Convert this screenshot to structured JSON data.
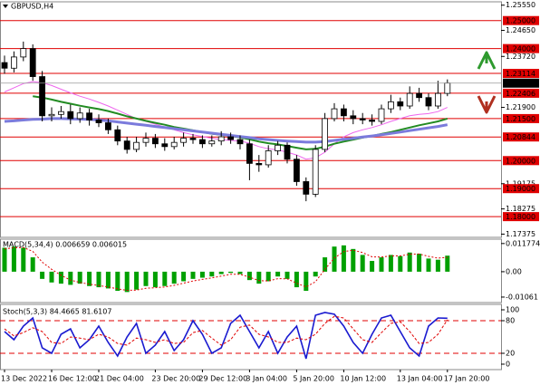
{
  "chart_data": [
    {
      "type": "candlestick",
      "title": "GBPUSD,H4",
      "open": [
        1.235,
        1.233,
        1.237,
        1.24,
        1.23,
        1.216,
        1.2165,
        1.2175,
        1.215,
        1.217,
        1.2145,
        1.2135,
        1.211,
        1.207,
        1.204,
        1.2065,
        1.208,
        1.206,
        1.205,
        1.2065,
        1.208,
        1.2075,
        1.206,
        1.207,
        1.2085,
        1.2075,
        1.206,
        1.199,
        1.1985,
        1.2035,
        1.2055,
        1.2005,
        1.1925,
        1.188,
        1.204,
        1.215,
        1.2185,
        1.216,
        1.215,
        1.2145,
        1.214,
        1.2185,
        1.221,
        1.2195,
        1.224,
        1.2225,
        1.2195,
        1.224
      ],
      "high": [
        1.2375,
        1.239,
        1.2425,
        1.2415,
        1.232,
        1.219,
        1.2195,
        1.22,
        1.219,
        1.2185,
        1.2165,
        1.215,
        1.2125,
        1.2085,
        1.2085,
        1.21,
        1.2095,
        1.208,
        1.2085,
        1.21,
        1.2095,
        1.209,
        1.209,
        1.2105,
        1.21,
        1.209,
        1.2075,
        1.202,
        1.2055,
        1.207,
        1.2065,
        1.202,
        1.194,
        1.2055,
        1.217,
        1.2205,
        1.22,
        1.218,
        1.217,
        1.2165,
        1.22,
        1.2235,
        1.2225,
        1.2265,
        1.226,
        1.224,
        1.2285,
        1.229
      ],
      "low": [
        1.231,
        1.2315,
        1.2355,
        1.2285,
        1.214,
        1.214,
        1.215,
        1.213,
        1.2135,
        1.2125,
        1.212,
        1.2095,
        1.2055,
        1.2025,
        1.203,
        1.205,
        1.2045,
        1.2035,
        1.204,
        1.205,
        1.206,
        1.2045,
        1.205,
        1.2055,
        1.206,
        1.204,
        1.193,
        1.196,
        1.1975,
        1.202,
        1.199,
        1.191,
        1.1855,
        1.187,
        1.203,
        1.214,
        1.214,
        1.213,
        1.213,
        1.2125,
        1.213,
        1.217,
        1.218,
        1.2185,
        1.221,
        1.218,
        1.2185,
        1.223
      ],
      "close": [
        1.233,
        1.237,
        1.24,
        1.23,
        1.216,
        1.2165,
        1.2175,
        1.215,
        1.217,
        1.2145,
        1.2135,
        1.211,
        1.207,
        1.204,
        1.2065,
        1.208,
        1.206,
        1.205,
        1.2065,
        1.208,
        1.2075,
        1.206,
        1.207,
        1.2085,
        1.2075,
        1.206,
        1.199,
        1.1985,
        1.2035,
        1.2055,
        1.2005,
        1.1925,
        1.188,
        1.204,
        1.215,
        1.2185,
        1.216,
        1.215,
        1.2145,
        1.214,
        1.2185,
        1.221,
        1.2195,
        1.224,
        1.2225,
        1.2195,
        1.224,
        1.2277
      ],
      "up_color": "#ffffff",
      "down_color": "#000000",
      "series": [
        {
          "color": "#ee66ee",
          "width": 1,
          "values": [
            1.2245,
            1.226,
            1.2275,
            1.2282,
            1.2278,
            1.2268,
            1.2255,
            1.2242,
            1.223,
            1.222,
            1.2208,
            1.2195,
            1.218,
            1.2165,
            1.215,
            1.214,
            1.213,
            1.212,
            1.211,
            1.21,
            1.2092,
            1.2086,
            1.208,
            1.2075,
            1.2072,
            1.207,
            1.2062,
            1.205,
            1.2042,
            1.2038,
            1.203,
            1.202,
            1.2005,
            1.201,
            1.203,
            1.206,
            1.2085,
            1.21,
            1.211,
            1.2118,
            1.2128,
            1.214,
            1.215,
            1.216,
            1.2165,
            1.2168,
            1.2175,
            1.219
          ]
        },
        {
          "color": "#228b22",
          "width": 2,
          "values": [
            null,
            null,
            null,
            1.223,
            1.2225,
            1.2218,
            1.221,
            1.2203,
            1.2196,
            1.219,
            1.2184,
            1.2177,
            1.2168,
            1.2158,
            1.215,
            1.2142,
            1.2135,
            1.2128,
            1.212,
            1.2114,
            1.2108,
            1.2102,
            1.2096,
            1.2092,
            1.2088,
            1.2083,
            1.2076,
            1.2068,
            1.2062,
            1.2058,
            1.2052,
            1.2046,
            1.204,
            1.2042,
            1.205,
            1.206,
            1.2068,
            1.2075,
            1.2082,
            1.2088,
            1.2095,
            1.2102,
            1.211,
            1.2118,
            1.2126,
            1.2133,
            1.214,
            1.215
          ]
        },
        {
          "color": "#7b7bdc",
          "width": 3,
          "values": [
            1.214,
            1.2142,
            1.2145,
            1.2147,
            1.2148,
            1.215,
            1.215,
            1.2149,
            1.2148,
            1.2147,
            1.2145,
            1.2142,
            1.2138,
            1.2134,
            1.213,
            1.2126,
            1.2122,
            1.2118,
            1.2114,
            1.211,
            1.2106,
            1.2102,
            1.2098,
            1.2094,
            1.209,
            1.2086,
            1.2082,
            1.2078,
            1.2075,
            1.2072,
            1.207,
            1.2068,
            1.2066,
            1.2066,
            1.2068,
            1.2072,
            1.2076,
            1.208,
            1.2084,
            1.2088,
            1.2092,
            1.2097,
            1.2102,
            1.2107,
            1.2112,
            1.2117,
            1.2122,
            1.2128
          ]
        }
      ],
      "ylim": [
        1.1726,
        1.2567
      ],
      "yticks": [
        {
          "value": 1.2555,
          "label": "1.25550"
        },
        {
          "value": 1.2465,
          "label": "1.24650"
        },
        {
          "value": 1.2372,
          "label": "1.23720"
        },
        {
          "value": 1.219,
          "label": "1.21900"
        },
        1.19175,
        1.18275,
        1.17375
      ],
      "levels": [
        {
          "value": 1.25,
          "label": "1.25000"
        },
        {
          "value": 1.24,
          "label": "1.24000"
        },
        1.23114,
        1.22406,
        {
          "value": 1.215,
          "label": "1.21500"
        },
        1.20844,
        {
          "value": 1.2,
          "label": "1.20000"
        },
        {
          "value": 1.19,
          "label": "1.19000"
        },
        {
          "value": 1.18,
          "label": "1.18000"
        }
      ],
      "level_color": "#e00000",
      "last_price": 1.22767
    },
    {
      "type": "macd",
      "title": "MACD(5,34,4) 0.006659 0.006015",
      "color": "#00a000",
      "values": [
        0.01,
        0.0105,
        0.01,
        0.006,
        -0.003,
        -0.0045,
        -0.005,
        -0.0055,
        -0.005,
        -0.006,
        -0.0065,
        -0.007,
        -0.008,
        -0.0085,
        -0.0075,
        -0.006,
        -0.0065,
        -0.006,
        -0.005,
        -0.004,
        -0.003,
        -0.0025,
        -0.002,
        -0.001,
        -0.0005,
        -0.001,
        -0.0035,
        -0.005,
        -0.004,
        -0.002,
        -0.003,
        -0.0065,
        -0.008,
        -0.002,
        0.006,
        0.0105,
        0.011,
        0.0095,
        0.007,
        0.0045,
        0.006,
        0.007,
        0.0065,
        0.008,
        0.0075,
        0.0055,
        0.005,
        0.0067
      ],
      "signal": {
        "color": "#e00000",
        "values": [
          0.0095,
          0.01,
          0.0101,
          0.0085,
          0.004,
          0.001,
          -0.0015,
          -0.0035,
          -0.0045,
          -0.0052,
          -0.0058,
          -0.0064,
          -0.0072,
          -0.0078,
          -0.0077,
          -0.0069,
          -0.0067,
          -0.0064,
          -0.0057,
          -0.0048,
          -0.0039,
          -0.0032,
          -0.0026,
          -0.0018,
          -0.0011,
          -0.0011,
          -0.0023,
          -0.0037,
          -0.0039,
          -0.0029,
          -0.003,
          -0.0048,
          -0.0064,
          -0.0042,
          0.001,
          0.0057,
          0.0084,
          0.009,
          0.008,
          0.0062,
          0.0061,
          0.0066,
          0.0066,
          0.0073,
          0.0074,
          0.0064,
          0.0057,
          0.006
        ]
      },
      "ylim": [
        -0.0129,
        0.0136
      ],
      "yticks": [
        0.011774,
        {
          "value": 0,
          "label": "0.00"
        },
        -0.01061
      ]
    },
    {
      "type": "stochastic",
      "title": "Stoch(5,3,3) 84.4665 81.6107",
      "categories": [
        "13 Dec 2022",
        null,
        null,
        null,
        null,
        "16 Dec 12:00",
        null,
        null,
        null,
        null,
        "21 Dec 04:00",
        null,
        null,
        null,
        null,
        null,
        "23 Dec 20:00",
        null,
        null,
        null,
        null,
        "29 Dec 12:00",
        null,
        null,
        null,
        null,
        "3 Jan 04:00",
        null,
        null,
        null,
        null,
        "5 Jan 20:00",
        null,
        null,
        null,
        null,
        "10 Jan 12:00",
        null,
        null,
        null,
        null,
        null,
        "13 Jan 04:00",
        null,
        null,
        null,
        null,
        "17 Jan 20:00"
      ],
      "series": [
        {
          "color": "#1a1ad0",
          "dashed": false,
          "values": [
            60,
            45,
            70,
            85,
            30,
            20,
            55,
            65,
            30,
            45,
            70,
            40,
            15,
            50,
            75,
            20,
            35,
            60,
            25,
            45,
            80,
            55,
            20,
            30,
            75,
            90,
            60,
            30,
            60,
            20,
            50,
            70,
            10,
            90,
            95,
            92,
            70,
            40,
            20,
            55,
            85,
            90,
            60,
            30,
            15,
            70,
            85,
            84.4665
          ]
        },
        {
          "color": "#e00000",
          "dashed": true,
          "values": [
            65,
            52,
            58,
            67,
            60,
            40,
            38,
            50,
            48,
            45,
            55,
            50,
            38,
            35,
            48,
            45,
            40,
            45,
            38,
            40,
            58,
            62,
            48,
            35,
            45,
            68,
            72,
            55,
            50,
            40,
            40,
            48,
            45,
            55,
            75,
            88,
            85,
            65,
            45,
            40,
            58,
            75,
            78,
            60,
            38,
            40,
            55,
            81.6107
          ]
        }
      ],
      "ylim": [
        -10,
        110
      ],
      "yticks": [
        0,
        20,
        80,
        100
      ],
      "levels": [
        20,
        80
      ],
      "level_color": "#e00000"
    }
  ]
}
